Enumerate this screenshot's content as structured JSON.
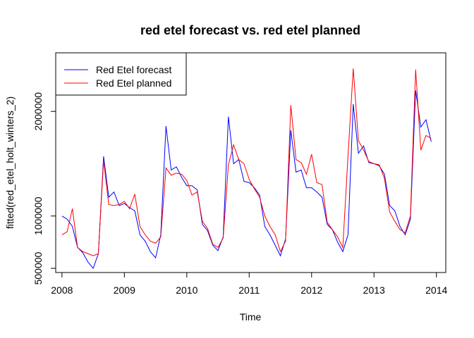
{
  "chart_data": {
    "type": "line",
    "title": "red etel forecast vs. red etel planned",
    "xlabel": "Time",
    "ylabel": "fitted(red_etel_holt_winters_2)",
    "xlim": [
      2007.9,
      2014.15
    ],
    "ylim": [
      460000,
      2560000
    ],
    "x_ticks": [
      2008,
      2009,
      2010,
      2011,
      2012,
      2013,
      2014
    ],
    "x_tick_labels": [
      "2008",
      "2009",
      "2010",
      "2011",
      "2012",
      "2013",
      "2014"
    ],
    "y_ticks": [
      500000,
      1000000,
      2000000
    ],
    "y_tick_labels": [
      "500000",
      "1000000",
      "2000000"
    ],
    "legend_position": "top-left",
    "x": [
      2008.0,
      2008.083,
      2008.167,
      2008.25,
      2008.333,
      2008.417,
      2008.5,
      2008.583,
      2008.667,
      2008.75,
      2008.833,
      2008.917,
      2009.0,
      2009.083,
      2009.167,
      2009.25,
      2009.333,
      2009.417,
      2009.5,
      2009.583,
      2009.667,
      2009.75,
      2009.833,
      2009.917,
      2010.0,
      2010.083,
      2010.167,
      2010.25,
      2010.333,
      2010.417,
      2010.5,
      2010.583,
      2010.667,
      2010.75,
      2010.833,
      2010.917,
      2011.0,
      2011.083,
      2011.167,
      2011.25,
      2011.333,
      2011.417,
      2011.5,
      2011.583,
      2011.667,
      2011.75,
      2011.833,
      2011.917,
      2012.0,
      2012.083,
      2012.167,
      2012.25,
      2012.333,
      2012.417,
      2012.5,
      2012.583,
      2012.667,
      2012.75,
      2012.833,
      2012.917,
      2013.0,
      2013.083,
      2013.167,
      2013.25,
      2013.333,
      2013.417,
      2013.5,
      2013.583,
      2013.667,
      2013.75,
      2013.833,
      2013.917
    ],
    "series": [
      {
        "name": "Red Etel forecast",
        "color": "#0000ff",
        "values": [
          1000000,
          970000,
          900000,
          700000,
          650000,
          560000,
          500000,
          640000,
          1570000,
          1180000,
          1230000,
          1100000,
          1120000,
          1080000,
          1050000,
          820000,
          760000,
          660000,
          600000,
          820000,
          1860000,
          1440000,
          1470000,
          1370000,
          1290000,
          1290000,
          1250000,
          920000,
          860000,
          720000,
          670000,
          800000,
          1950000,
          1500000,
          1540000,
          1330000,
          1320000,
          1270000,
          1200000,
          900000,
          820000,
          720000,
          620000,
          780000,
          1820000,
          1420000,
          1440000,
          1270000,
          1270000,
          1230000,
          1180000,
          920000,
          870000,
          750000,
          660000,
          820000,
          2070000,
          1600000,
          1670000,
          1510000,
          1500000,
          1480000,
          1400000,
          1100000,
          1050000,
          900000,
          820000,
          970000,
          2200000,
          1850000,
          1920000,
          1710000
        ]
      },
      {
        "name": "Red Etel planned",
        "color": "#ff0000",
        "values": [
          820000,
          850000,
          1070000,
          700000,
          660000,
          640000,
          620000,
          640000,
          1530000,
          1110000,
          1100000,
          1110000,
          1140000,
          1070000,
          1210000,
          900000,
          820000,
          760000,
          740000,
          800000,
          1460000,
          1390000,
          1410000,
          1400000,
          1340000,
          1200000,
          1230000,
          950000,
          880000,
          730000,
          700000,
          790000,
          1490000,
          1680000,
          1540000,
          1500000,
          1350000,
          1260000,
          1180000,
          1000000,
          900000,
          820000,
          660000,
          760000,
          2060000,
          1540000,
          1510000,
          1400000,
          1590000,
          1320000,
          1300000,
          940000,
          870000,
          800000,
          700000,
          1570000,
          2410000,
          1720000,
          1630000,
          1520000,
          1500000,
          1490000,
          1360000,
          1040000,
          950000,
          870000,
          840000,
          1000000,
          2400000,
          1630000,
          1770000,
          1740000
        ]
      }
    ]
  }
}
